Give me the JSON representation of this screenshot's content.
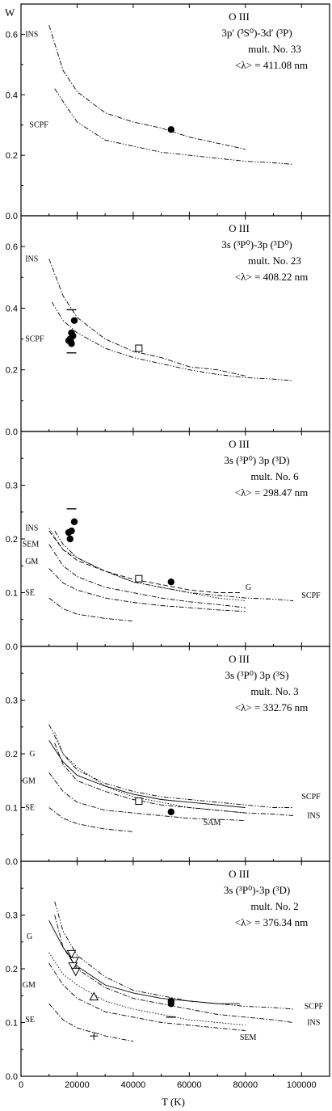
{
  "figure": {
    "ylabel": "W",
    "xlabel": "T (K)",
    "xticks": [
      "0",
      "20000",
      "40000",
      "60000",
      "80000",
      "100000"
    ]
  },
  "chart_data": [
    {
      "type": "line",
      "title_lines": [
        "O III",
        "3p′ (³S⁰)-3d′ (³P)",
        "mult. No. 33",
        "<λ> = 411.08 nm"
      ],
      "ylim": [
        0,
        0.7
      ],
      "yticks": [
        "0.0",
        "0.2",
        "0.4",
        "0.6"
      ],
      "xlim": [
        0,
        110000
      ],
      "series": [
        {
          "name": "INS",
          "style": "dashdot",
          "x": [
            10000,
            15000,
            20000,
            30000,
            40000,
            50000,
            60000,
            70000,
            80000
          ],
          "y": [
            0.63,
            0.48,
            0.41,
            0.34,
            0.31,
            0.29,
            0.26,
            0.24,
            0.22
          ]
        },
        {
          "name": "SCPF",
          "style": "dashdotdot",
          "x": [
            12000,
            17000,
            20000,
            30000,
            40000,
            50000,
            60000,
            70000,
            80000,
            90000,
            97000
          ],
          "y": [
            0.42,
            0.35,
            0.31,
            0.25,
            0.23,
            0.21,
            0.2,
            0.19,
            0.18,
            0.175,
            0.17
          ]
        }
      ],
      "markers": [
        {
          "symbol": "filled-circle",
          "points": [
            [
              53500,
              0.285
            ]
          ]
        }
      ],
      "labels": [
        {
          "text": "INS",
          "x": 1500,
          "y": 0.6
        },
        {
          "text": "SCPF",
          "x": 3000,
          "y": 0.3
        }
      ]
    },
    {
      "type": "line",
      "title_lines": [
        "O III",
        "3s (³P⁰)-3p (³D⁰)",
        "mult. No. 23",
        "<λ> = 408.22 nm"
      ],
      "ylim": [
        0,
        0.7
      ],
      "yticks": [
        "0.0",
        "0.2",
        "0.4",
        "0.6"
      ],
      "xlim": [
        0,
        110000
      ],
      "series": [
        {
          "name": "INS",
          "style": "dashdot",
          "x": [
            10000,
            15000,
            20000,
            30000,
            40000,
            50000,
            60000,
            70000,
            80000
          ],
          "y": [
            0.56,
            0.44,
            0.37,
            0.3,
            0.26,
            0.24,
            0.21,
            0.2,
            0.18
          ]
        },
        {
          "name": "SCPF",
          "style": "dashdotdot",
          "x": [
            11000,
            15000,
            20000,
            30000,
            40000,
            50000,
            60000,
            70000,
            80000,
            90000,
            97000
          ],
          "y": [
            0.42,
            0.36,
            0.32,
            0.27,
            0.24,
            0.22,
            0.2,
            0.185,
            0.175,
            0.17,
            0.165
          ]
        }
      ],
      "markers": [
        {
          "symbol": "filled-circle",
          "points": [
            [
              17000,
              0.295
            ],
            [
              17500,
              0.3
            ],
            [
              17800,
              0.29
            ],
            [
              18000,
              0.32
            ],
            [
              18500,
              0.31
            ],
            [
              19000,
              0.36
            ],
            [
              18000,
              0.285
            ]
          ]
        },
        {
          "symbol": "dash",
          "points": [
            [
              18000,
              0.395
            ],
            [
              18000,
              0.255
            ]
          ]
        },
        {
          "symbol": "open-square",
          "points": [
            [
              42000,
              0.27
            ]
          ]
        }
      ],
      "labels": [
        {
          "text": "INS",
          "x": 1500,
          "y": 0.56
        },
        {
          "text": "SCPF",
          "x": 1500,
          "y": 0.3
        }
      ]
    },
    {
      "type": "line",
      "title_lines": [
        "O III",
        "3s (³P⁰) 3p (³D)",
        "mult. No. 6",
        "<λ> = 298.47 nm"
      ],
      "ylim": [
        0,
        0.4
      ],
      "yticks": [
        "0.0",
        "0.1",
        "0.2",
        "0.3"
      ],
      "xlim": [
        0,
        110000
      ],
      "series": [
        {
          "name": "INS",
          "style": "dotted",
          "x": [
            10000,
            15000,
            20000,
            30000,
            40000,
            50000,
            60000,
            70000,
            80000
          ],
          "y": [
            0.22,
            0.18,
            0.165,
            0.14,
            0.12,
            0.11,
            0.1,
            0.09,
            0.085
          ]
        },
        {
          "name": "G",
          "style": "dashed",
          "x": [
            10000,
            15000,
            20000,
            30000,
            40000,
            50000,
            60000,
            70000,
            78000
          ],
          "y": [
            0.215,
            0.18,
            0.16,
            0.14,
            0.125,
            0.115,
            0.105,
            0.1,
            0.1
          ]
        },
        {
          "name": "SCPF",
          "style": "dashdotdot",
          "x": [
            12000,
            15000,
            20000,
            30000,
            40000,
            50000,
            60000,
            70000,
            80000,
            90000,
            97000
          ],
          "y": [
            0.215,
            0.19,
            0.165,
            0.14,
            0.12,
            0.11,
            0.1,
            0.095,
            0.09,
            0.088,
            0.085
          ]
        },
        {
          "name": "SEM",
          "style": "dashdot",
          "x": [
            10000,
            15000,
            20000,
            30000,
            40000,
            50000,
            60000,
            70000,
            80000
          ],
          "y": [
            0.19,
            0.15,
            0.13,
            0.11,
            0.1,
            0.09,
            0.083,
            0.078,
            0.072
          ]
        },
        {
          "name": "GM",
          "style": "dashdot",
          "x": [
            10000,
            15000,
            20000,
            30000,
            40000,
            50000,
            60000,
            70000,
            80000
          ],
          "y": [
            0.145,
            0.118,
            0.105,
            0.09,
            0.082,
            0.076,
            0.072,
            0.068,
            0.065
          ]
        },
        {
          "name": "SE",
          "style": "dashdot",
          "x": [
            10000,
            15000,
            20000,
            30000,
            40000
          ],
          "y": [
            0.09,
            0.07,
            0.06,
            0.052,
            0.047
          ]
        }
      ],
      "markers": [
        {
          "symbol": "filled-circle",
          "points": [
            [
              17000,
              0.212
            ],
            [
              17500,
              0.2
            ],
            [
              18000,
              0.215
            ],
            [
              19000,
              0.232
            ],
            [
              53500,
              0.12
            ]
          ]
        },
        {
          "symbol": "dash",
          "points": [
            [
              18000,
              0.256
            ]
          ]
        },
        {
          "symbol": "open-square",
          "points": [
            [
              42000,
              0.126
            ]
          ]
        }
      ],
      "labels": [
        {
          "text": "INS",
          "x": 1500,
          "y": 0.22
        },
        {
          "text": "SEM",
          "x": 500,
          "y": 0.19
        },
        {
          "text": "GM",
          "x": 1500,
          "y": 0.158
        },
        {
          "text": "SE",
          "x": 1500,
          "y": 0.1
        },
        {
          "text": "G",
          "x": 80000,
          "y": 0.11
        },
        {
          "text": "SCPF",
          "x": 100000,
          "y": 0.095
        }
      ]
    },
    {
      "type": "line",
      "title_lines": [
        "O III",
        "3s (³P⁰) 3p (³S)",
        "mult. No. 3",
        "<λ> = 332.76 nm"
      ],
      "ylim": [
        0,
        0.4
      ],
      "yticks": [
        "0.0",
        "0.1",
        "0.2",
        "0.3"
      ],
      "xlim": [
        0,
        110000
      ],
      "series": [
        {
          "name": "G",
          "style": "solid",
          "x": [
            10000,
            15000,
            20000,
            30000,
            40000,
            50000,
            60000,
            70000,
            80000
          ],
          "y": [
            0.225,
            0.185,
            0.16,
            0.14,
            0.125,
            0.115,
            0.11,
            0.105,
            0.1
          ]
        },
        {
          "name": "SCPF",
          "style": "dashdotdot",
          "x": [
            10000,
            15000,
            20000,
            30000,
            40000,
            50000,
            60000,
            70000,
            80000,
            90000,
            97000
          ],
          "y": [
            0.255,
            0.2,
            0.17,
            0.145,
            0.13,
            0.12,
            0.115,
            0.11,
            0.105,
            0.1,
            0.1
          ]
        },
        {
          "name": "SAM",
          "style": "dotted",
          "x": [
            12000,
            15000,
            20000,
            30000,
            40000,
            50000,
            60000,
            70000,
            80000
          ],
          "y": [
            0.24,
            0.2,
            0.175,
            0.14,
            0.12,
            0.11,
            0.1,
            0.095,
            0.09
          ]
        },
        {
          "name": "INS",
          "style": "dashdot",
          "x": [
            12000,
            15000,
            20000,
            30000,
            40000,
            50000,
            60000,
            70000,
            80000,
            90000,
            97000
          ],
          "y": [
            0.22,
            0.18,
            0.15,
            0.13,
            0.115,
            0.105,
            0.1,
            0.095,
            0.09,
            0.088,
            0.085
          ]
        },
        {
          "name": "GM",
          "style": "dashdot",
          "x": [
            10000,
            15000,
            20000,
            30000,
            40000,
            50000,
            60000,
            70000,
            80000
          ],
          "y": [
            0.165,
            0.13,
            0.11,
            0.095,
            0.09,
            0.085,
            0.08,
            0.078,
            0.076
          ]
        },
        {
          "name": "SE",
          "style": "dashdot",
          "x": [
            10000,
            15000,
            20000,
            30000,
            40000
          ],
          "y": [
            0.1,
            0.08,
            0.07,
            0.06,
            0.055
          ]
        }
      ],
      "markers": [
        {
          "symbol": "filled-circle",
          "points": [
            [
              53500,
              0.092
            ]
          ]
        },
        {
          "symbol": "open-square",
          "points": [
            [
              42000,
              0.112
            ]
          ]
        }
      ],
      "labels": [
        {
          "text": "G",
          "x": 3000,
          "y": 0.2
        },
        {
          "text": "GM",
          "x": 500,
          "y": 0.15
        },
        {
          "text": "SE",
          "x": 1500,
          "y": 0.1
        },
        {
          "text": "SCPF",
          "x": 100000,
          "y": 0.12
        },
        {
          "text": "INS",
          "x": 102000,
          "y": 0.085
        },
        {
          "text": "SAM",
          "x": 65000,
          "y": 0.072
        }
      ]
    },
    {
      "type": "line",
      "title_lines": [
        "O III",
        "3s (³P⁰)-3p (³D)",
        "mult. No. 2",
        "<λ> = 376.34 nm"
      ],
      "ylim": [
        0,
        0.4
      ],
      "yticks": [
        "0.0",
        "0.1",
        "0.2",
        "0.3"
      ],
      "xlim": [
        0,
        110000
      ],
      "series": [
        {
          "name": "G",
          "style": "solid",
          "x": [
            10000,
            15000,
            20000,
            30000,
            40000,
            50000,
            60000,
            70000,
            78000
          ],
          "y": [
            0.29,
            0.24,
            0.205,
            0.17,
            0.155,
            0.145,
            0.14,
            0.135,
            0.135
          ]
        },
        {
          "name": "SCPF",
          "style": "dashdotdot",
          "x": [
            12000,
            15000,
            20000,
            30000,
            40000,
            50000,
            60000,
            70000,
            80000,
            90000,
            97000
          ],
          "y": [
            0.325,
            0.27,
            0.225,
            0.185,
            0.16,
            0.15,
            0.14,
            0.135,
            0.13,
            0.128,
            0.125
          ]
        },
        {
          "name": "INS",
          "style": "dashdot",
          "x": [
            12000,
            15000,
            20000,
            30000,
            40000,
            50000,
            60000,
            70000,
            80000,
            90000,
            97000
          ],
          "y": [
            0.3,
            0.24,
            0.2,
            0.165,
            0.145,
            0.135,
            0.125,
            0.115,
            0.11,
            0.105,
            0.1
          ]
        },
        {
          "name": "SEM",
          "style": "dotted",
          "x": [
            10000,
            15000,
            20000,
            30000,
            40000,
            50000,
            60000,
            70000,
            80000
          ],
          "y": [
            0.23,
            0.19,
            0.17,
            0.14,
            0.125,
            0.115,
            0.105,
            0.1,
            0.095
          ]
        },
        {
          "name": "GM",
          "style": "dashdot",
          "x": [
            10000,
            15000,
            20000,
            30000,
            40000,
            50000,
            60000,
            70000,
            80000
          ],
          "y": [
            0.21,
            0.17,
            0.145,
            0.12,
            0.11,
            0.1,
            0.095,
            0.09,
            0.085
          ]
        },
        {
          "name": "SE",
          "style": "dashdot",
          "x": [
            10000,
            15000,
            20000,
            30000,
            40000
          ],
          "y": [
            0.135,
            0.105,
            0.09,
            0.075,
            0.065
          ]
        }
      ],
      "markers": [
        {
          "symbol": "filled-circle",
          "points": [
            [
              53500,
              0.14
            ],
            [
              53500,
              0.135
            ]
          ]
        },
        {
          "symbol": "open-triangle-down",
          "points": [
            [
              18000,
              0.228
            ],
            [
              19000,
              0.215
            ],
            [
              18500,
              0.205
            ],
            [
              19500,
              0.195
            ]
          ]
        },
        {
          "symbol": "open-triangle-up",
          "points": [
            [
              26000,
              0.148
            ]
          ]
        },
        {
          "symbol": "plus",
          "points": [
            [
              26000,
              0.075
            ]
          ]
        },
        {
          "symbol": "dash",
          "points": [
            [
              53500,
              0.11
            ]
          ]
        }
      ],
      "labels": [
        {
          "text": "G",
          "x": 2000,
          "y": 0.26
        },
        {
          "text": "GM",
          "x": 500,
          "y": 0.17
        },
        {
          "text": "SE",
          "x": 1500,
          "y": 0.105
        },
        {
          "text": "SCPF",
          "x": 101000,
          "y": 0.13
        },
        {
          "text": "INS",
          "x": 102000,
          "y": 0.1
        },
        {
          "text": "SEM",
          "x": 78000,
          "y": 0.072
        }
      ]
    }
  ]
}
